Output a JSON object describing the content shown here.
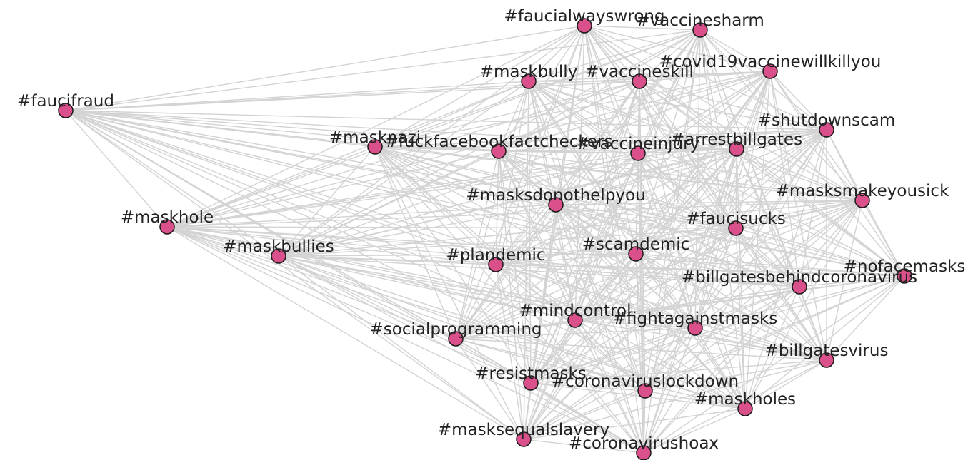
{
  "nodes": [
    {
      "label": "#faucialwayswrong"
    },
    {
      "label": "#vaccinesharm"
    },
    {
      "label": "#covid19vaccinewillkillyou"
    },
    {
      "label": "#maskbully"
    },
    {
      "label": "#vaccineskill"
    },
    {
      "label": "#faucifraud"
    },
    {
      "label": "#shutdownscam"
    },
    {
      "label": "#masknazi"
    },
    {
      "label": "#fuckfacebookfactcheckers"
    },
    {
      "label": "#vaccineinjury"
    },
    {
      "label": "#arrestbillgates"
    },
    {
      "label": "#masksmakeyousick"
    },
    {
      "label": "#masksdonothelpyou"
    },
    {
      "label": "#maskhole"
    },
    {
      "label": "#faucisucks"
    },
    {
      "label": "#maskbullies"
    },
    {
      "label": "#scamdemic"
    },
    {
      "label": "#plandemic"
    },
    {
      "label": "#nofacemasks"
    },
    {
      "label": "#billgatesbehindcoronavirus"
    },
    {
      "label": "#mindcontrol"
    },
    {
      "label": "#fightagainstmasks"
    },
    {
      "label": "#socialprogramming"
    },
    {
      "label": "#billgatesvirus"
    },
    {
      "label": "#resistmasks"
    },
    {
      "label": "#coronaviruslockdown"
    },
    {
      "label": "#maskholes"
    },
    {
      "label": "#masksequalslavery"
    },
    {
      "label": "#coronavirushoax"
    }
  ]
}
